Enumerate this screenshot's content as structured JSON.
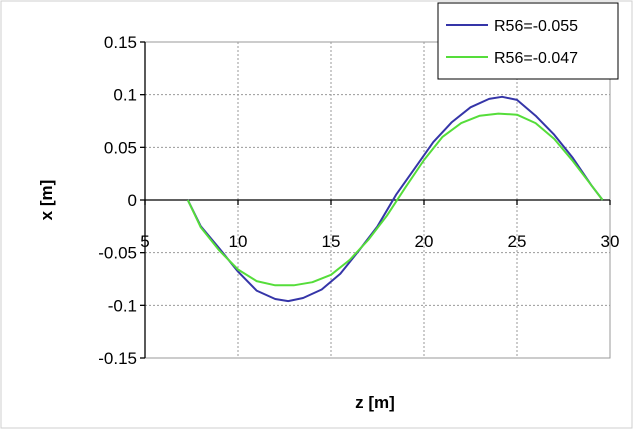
{
  "chart_data": {
    "type": "line",
    "title": "",
    "xlabel": "z [m]",
    "ylabel": "x [m]",
    "xlim": [
      5,
      30
    ],
    "ylim": [
      -0.15,
      0.15
    ],
    "x_ticks": [
      "5",
      "10",
      "15",
      "20",
      "25",
      "30"
    ],
    "y_ticks": [
      "0.15",
      "0.1",
      "0.05",
      "0",
      "-0.05",
      "-0.1",
      "-0.15"
    ],
    "grid": true,
    "legend": "top-right",
    "series": [
      {
        "name": "R56=-0.055",
        "color": "#3535a8",
        "x": [
          7.3,
          8.0,
          9.0,
          10.0,
          11.0,
          12.0,
          12.7,
          13.5,
          14.5,
          15.5,
          16.5,
          17.5,
          18.5,
          19.5,
          20.5,
          21.5,
          22.5,
          23.5,
          24.2,
          25.0,
          26.0,
          27.0,
          28.0,
          29.0,
          29.6
        ],
        "y": [
          0.0,
          -0.025,
          -0.046,
          -0.068,
          -0.086,
          -0.094,
          -0.096,
          -0.093,
          -0.085,
          -0.07,
          -0.048,
          -0.025,
          0.005,
          0.03,
          0.055,
          0.074,
          0.088,
          0.096,
          0.098,
          0.095,
          0.08,
          0.062,
          0.04,
          0.014,
          0.0
        ]
      },
      {
        "name": "R56=-0.047",
        "color": "#55dd3a",
        "x": [
          7.3,
          8.0,
          9.0,
          10.0,
          11.0,
          12.0,
          13.0,
          14.0,
          15.0,
          16.0,
          17.0,
          18.0,
          19.0,
          20.0,
          21.0,
          22.0,
          23.0,
          24.0,
          25.0,
          26.0,
          27.0,
          28.0,
          29.0,
          29.6
        ],
        "y": [
          0.0,
          -0.026,
          -0.048,
          -0.066,
          -0.077,
          -0.081,
          -0.081,
          -0.078,
          -0.071,
          -0.057,
          -0.038,
          -0.015,
          0.012,
          0.038,
          0.06,
          0.073,
          0.08,
          0.082,
          0.081,
          0.073,
          0.058,
          0.037,
          0.014,
          0.0
        ]
      }
    ]
  }
}
